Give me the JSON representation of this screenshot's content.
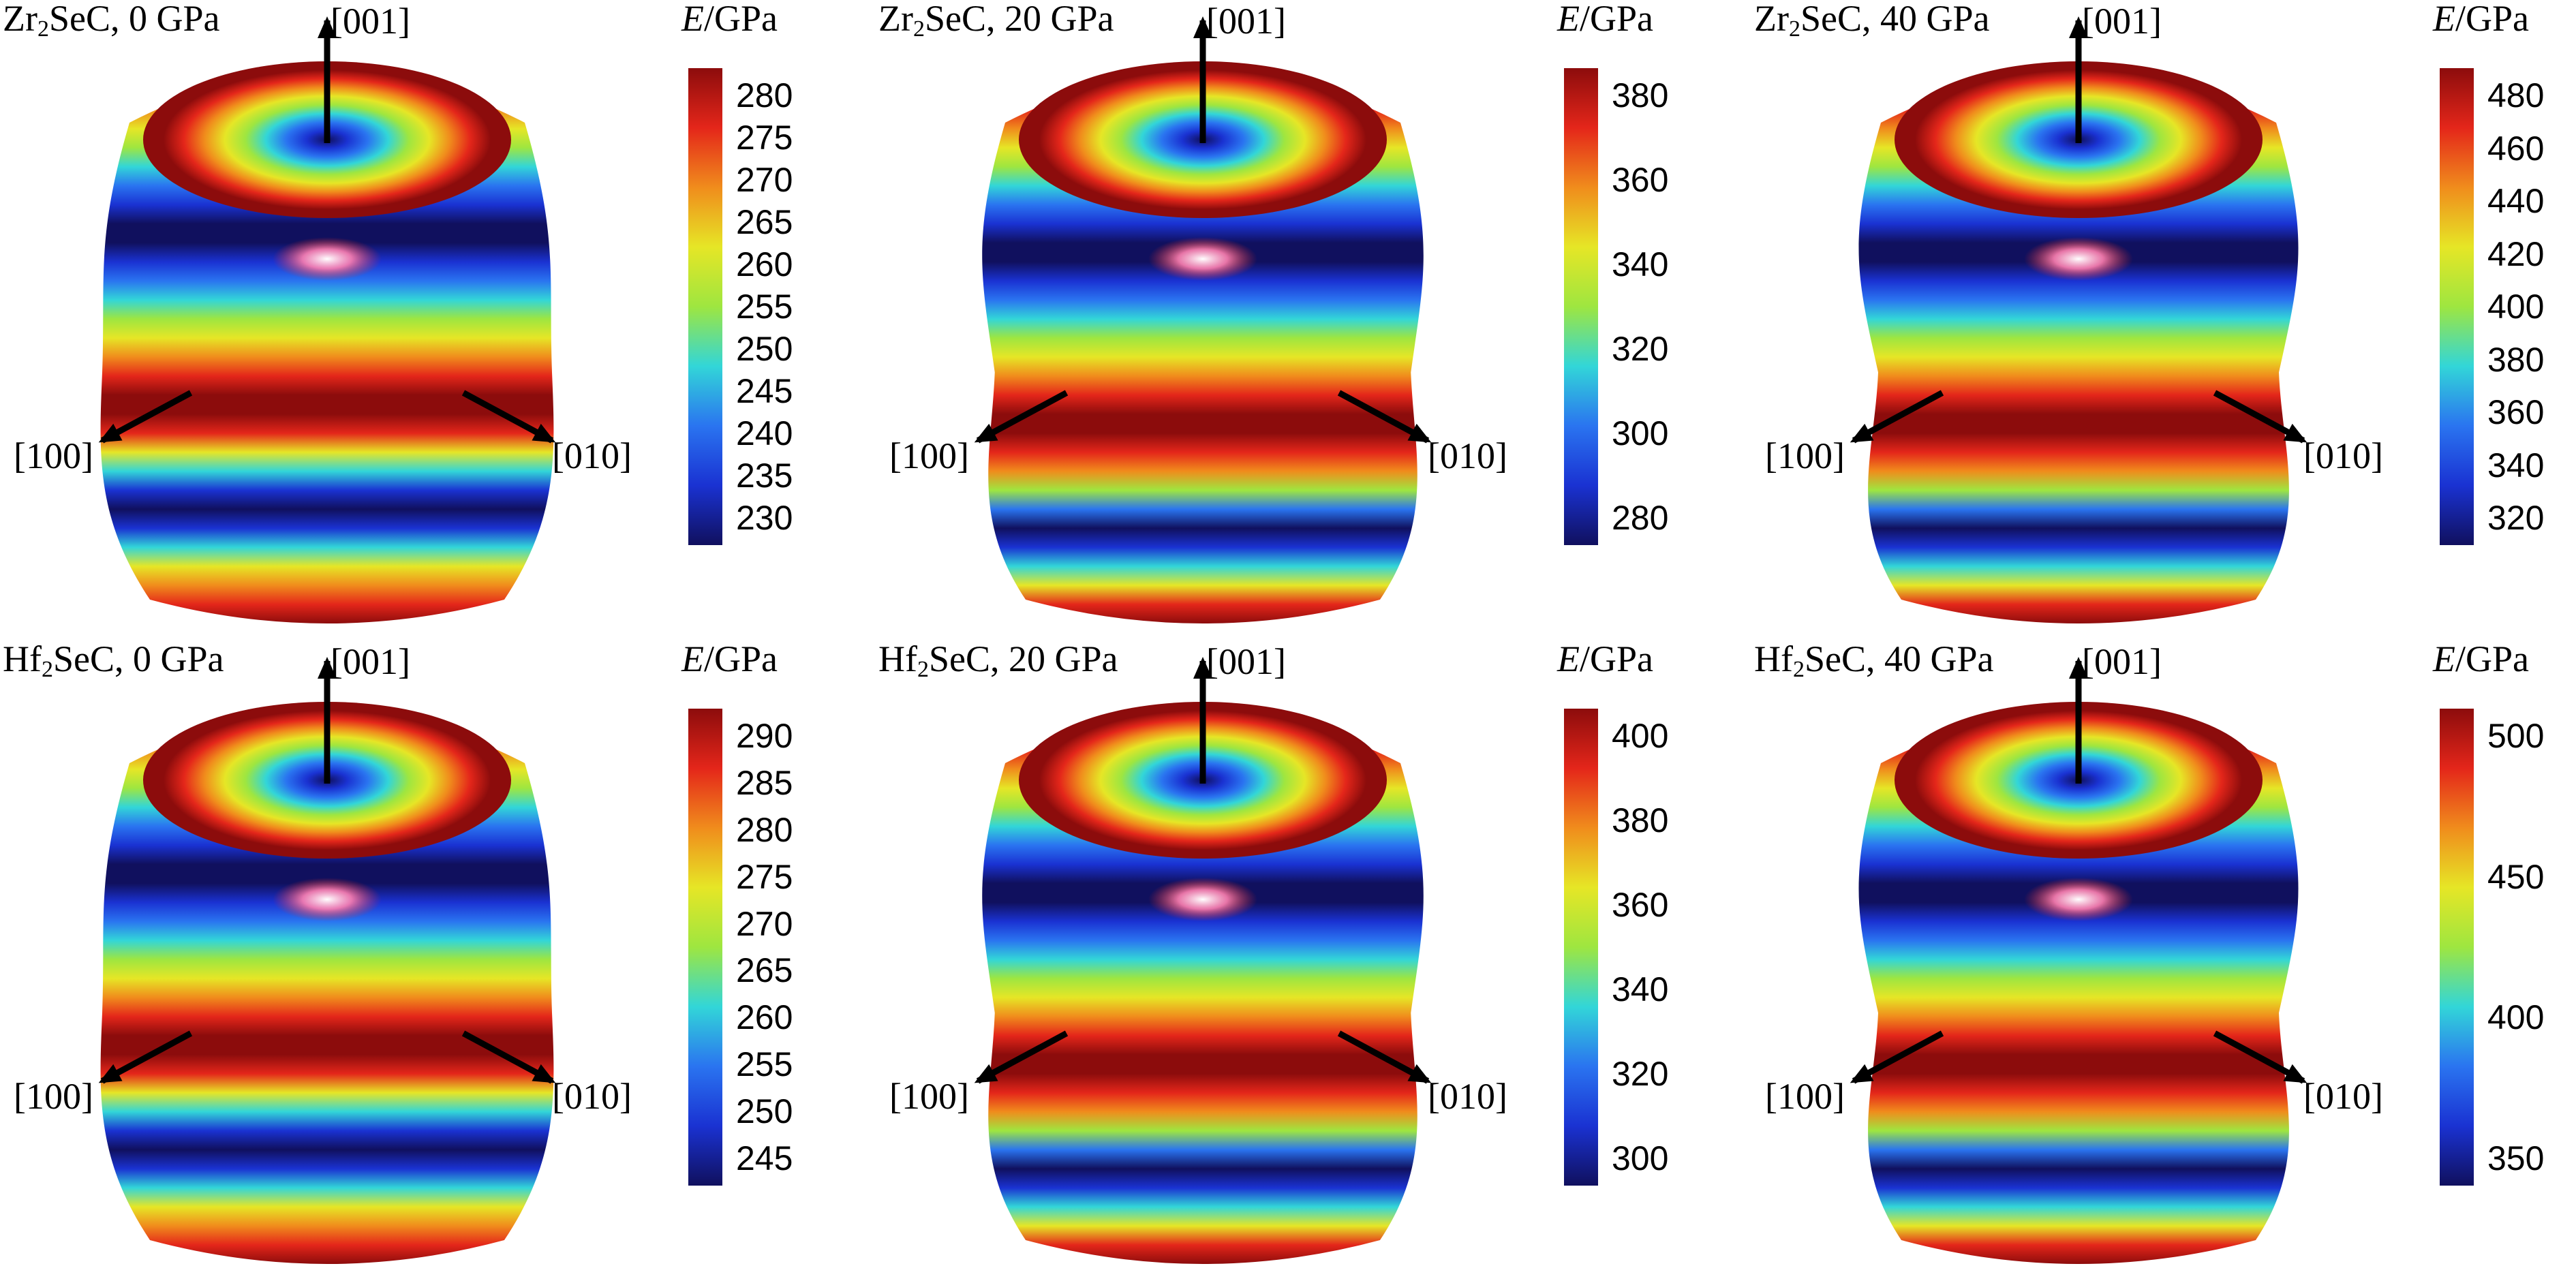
{
  "modulus_symbol": "E",
  "modulus_unit": "/GPa",
  "direction_labels": {
    "z": "[001]",
    "x": "[100]",
    "y": "[010]"
  },
  "colormap": [
    "#10105e",
    "#1a32d2",
    "#2a74f0",
    "#32d6d8",
    "#9ee640",
    "#e6e626",
    "#f08c1c",
    "#e4261a",
    "#8c0c0c"
  ],
  "panels": [
    {
      "element": "Zr",
      "subscript": "2",
      "compound_suffix": "SeC",
      "pressure": ", 0 GPa",
      "ticks": [
        "280",
        "275",
        "270",
        "265",
        "260",
        "255",
        "250",
        "245",
        "240",
        "235",
        "230"
      ],
      "neck": 0.0
    },
    {
      "element": "Zr",
      "subscript": "2",
      "compound_suffix": "SeC",
      "pressure": ", 20 GPa",
      "ticks": [
        "380",
        "360",
        "340",
        "320",
        "300",
        "280"
      ],
      "neck": 0.55
    },
    {
      "element": "Zr",
      "subscript": "2",
      "compound_suffix": "SeC",
      "pressure": ", 40 GPa",
      "ticks": [
        "480",
        "460",
        "440",
        "420",
        "400",
        "380",
        "360",
        "340",
        "320"
      ],
      "neck": 0.8
    },
    {
      "element": "Hf",
      "subscript": "2",
      "compound_suffix": "SeC",
      "pressure": ", 0 GPa",
      "ticks": [
        "290",
        "285",
        "280",
        "275",
        "270",
        "265",
        "260",
        "255",
        "250",
        "245"
      ],
      "neck": 0.0
    },
    {
      "element": "Hf",
      "subscript": "2",
      "compound_suffix": "SeC",
      "pressure": ", 20 GPa",
      "ticks": [
        "400",
        "380",
        "360",
        "340",
        "320",
        "300"
      ],
      "neck": 0.55
    },
    {
      "element": "Hf",
      "subscript": "2",
      "compound_suffix": "SeC",
      "pressure": ", 40 GPa",
      "ticks": [
        "500",
        "450",
        "400",
        "350"
      ],
      "neck": 0.8
    }
  ]
}
